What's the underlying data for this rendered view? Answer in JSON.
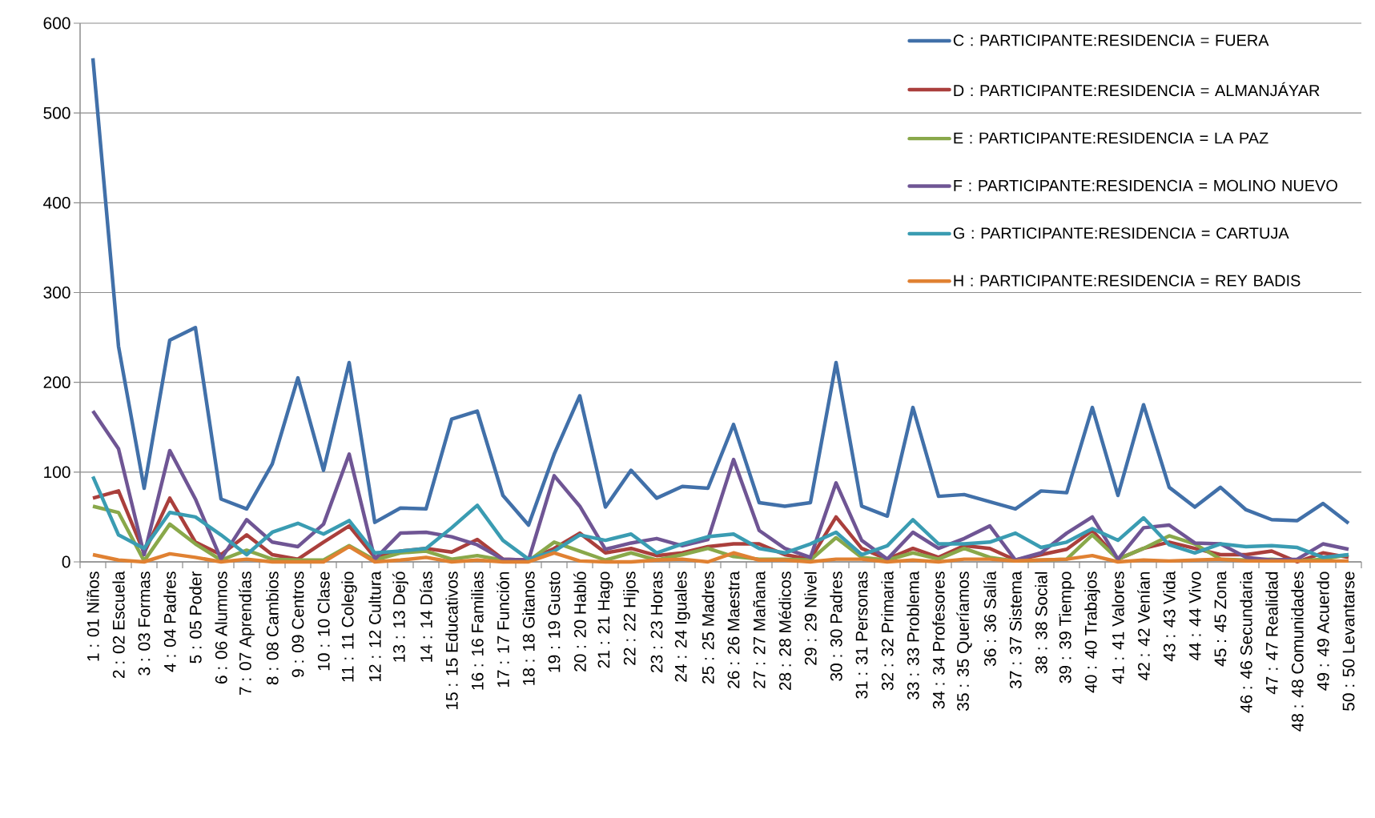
{
  "chart_data": {
    "type": "line",
    "categories": [
      "1 : 01 Niños",
      "2 : 02 Escuela",
      "3 : 03 Formas",
      "4 : 04 Padres",
      "5 : 05 Poder",
      "6 : 06 Alumnos",
      "7 : 07 Aprendías",
      "8 : 08 Cambios",
      "9 : 09 Centros",
      "10 : 10 Clase",
      "11 : 11 Colegio",
      "12 : 12 Cultura",
      "13 : 13 Dejó",
      "14 : 14 Días",
      "15 : 15 Educativos",
      "16 : 16 Familias",
      "17 : 17 Función",
      "18 : 18 Gitanos",
      "19 : 19 Gusto",
      "20 : 20 Habló",
      "21 : 21 Hago",
      "22 : 22 Hijos",
      "23 : 23 Horas",
      "24 : 24 Iguales",
      "25 : 25 Madres",
      "26 : 26 Maestra",
      "27 : 27 Mañana",
      "28 : 28 Médicos",
      "29 : 29 Nivel",
      "30 : 30 Padres",
      "31 : 31 Personas",
      "32 : 32 Primaria",
      "33 : 33 Problema",
      "34 : 34 Profesores",
      "35 : 35 Queríamos",
      "36 : 36 Salía",
      "37 : 37 Sistema",
      "38 : 38 Social",
      "39 : 39 Tiempo",
      "40 : 40 Trabajos",
      "41 : 41 Valores",
      "42 : 42 Venían",
      "43 : 43 Vida",
      "44 : 44 Vivo",
      "45 : 45 Zona",
      "46 : 46 Secundaria",
      "47 : 47 Realidad",
      "48 : 48 Comunidades",
      "49 : 49 Acuerdo",
      "50 : 50 Levantarse"
    ],
    "series": [
      {
        "name": "C : PARTICIPANTE:RESIDENCIA = FUERA",
        "color": "#4170a9",
        "values": [
          561,
          240,
          82,
          247,
          261,
          70,
          59,
          109,
          205,
          102,
          222,
          44,
          60,
          59,
          159,
          168,
          74,
          41,
          120,
          185,
          61,
          102,
          71,
          84,
          82,
          153,
          66,
          62,
          66,
          222,
          62,
          51,
          172,
          73,
          75,
          67,
          59,
          79,
          77,
          172,
          74,
          175,
          83,
          61,
          83,
          58,
          47,
          46,
          65,
          43
        ]
      },
      {
        "name": "D : PARTICIPANTE:RESIDENCIA = ALMANJÁYAR",
        "color": "#aa3f3c",
        "values": [
          71,
          79,
          10,
          71,
          22,
          8,
          30,
          8,
          3,
          22,
          40,
          5,
          12,
          15,
          11,
          25,
          3,
          2,
          15,
          32,
          10,
          15,
          7,
          10,
          17,
          20,
          20,
          8,
          3,
          50,
          15,
          3,
          15,
          5,
          18,
          15,
          2,
          8,
          14,
          35,
          3,
          15,
          22,
          15,
          8,
          8,
          12,
          0,
          10,
          5
        ]
      },
      {
        "name": "E : PARTICIPANTE:RESIDENCIA = LA PAZ",
        "color": "#89a84a",
        "values": [
          62,
          55,
          1,
          42,
          20,
          2,
          13,
          3,
          2,
          2,
          18,
          2,
          10,
          12,
          3,
          7,
          2,
          1,
          22,
          12,
          2,
          10,
          2,
          8,
          15,
          6,
          3,
          3,
          2,
          27,
          5,
          2,
          10,
          3,
          15,
          5,
          1,
          2,
          3,
          30,
          3,
          15,
          29,
          20,
          3,
          2,
          3,
          1,
          3,
          8
        ]
      },
      {
        "name": "F : PARTICIPANTE:RESIDENCIA = MOLINO NUEVO",
        "color": "#6f5594",
        "values": [
          168,
          126,
          8,
          124,
          70,
          3,
          47,
          22,
          17,
          42,
          120,
          3,
          32,
          33,
          28,
          19,
          3,
          2,
          96,
          62,
          14,
          21,
          26,
          18,
          25,
          114,
          35,
          15,
          5,
          88,
          24,
          3,
          33,
          15,
          26,
          40,
          2,
          10,
          32,
          50,
          3,
          38,
          41,
          21,
          20,
          5,
          2,
          3,
          20,
          14
        ]
      },
      {
        "name": "G : PARTICIPANTE:RESIDENCIA = CARTUJA",
        "color": "#3a9cb2",
        "values": [
          95,
          30,
          15,
          55,
          50,
          30,
          8,
          33,
          43,
          31,
          46,
          10,
          12,
          15,
          38,
          63,
          24,
          3,
          12,
          30,
          24,
          31,
          10,
          20,
          28,
          31,
          15,
          10,
          20,
          33,
          8,
          18,
          47,
          20,
          20,
          22,
          32,
          16,
          22,
          37,
          24,
          49,
          19,
          10,
          20,
          17,
          18,
          16,
          5,
          8
        ]
      },
      {
        "name": "H : PARTICIPANTE:RESIDENCIA = REY BADIS",
        "color": "#e08132",
        "values": [
          8,
          2,
          0,
          9,
          5,
          0,
          3,
          0,
          0,
          0,
          17,
          0,
          2,
          5,
          0,
          2,
          0,
          0,
          10,
          1,
          0,
          0,
          2,
          3,
          0,
          10,
          2,
          2,
          0,
          3,
          3,
          0,
          2,
          0,
          3,
          3,
          1,
          2,
          3,
          7,
          0,
          2,
          1,
          2,
          3,
          1,
          1,
          1,
          1,
          1
        ]
      }
    ],
    "ylim": [
      0,
      600
    ],
    "yticks": [
      0,
      100,
      200,
      300,
      400,
      500,
      600
    ],
    "grid": "y",
    "legend": "top right",
    "marker": "none",
    "line_style": "solid"
  }
}
